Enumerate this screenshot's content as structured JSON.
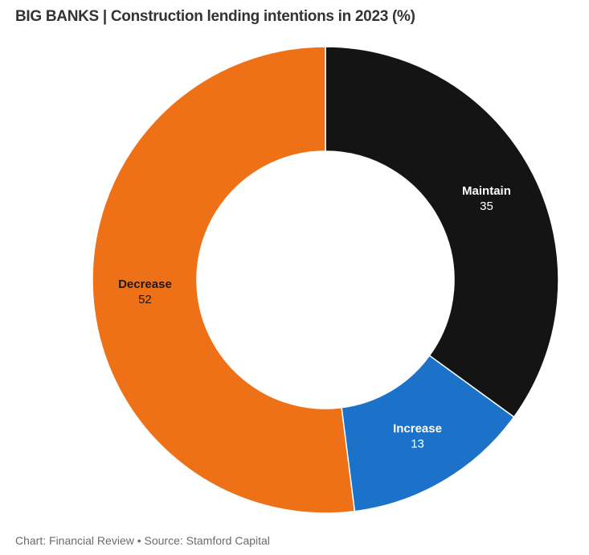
{
  "header": {
    "title": "BIG BANKS | Construction lending intentions in 2023 (%)"
  },
  "chart_data": {
    "type": "pie",
    "variant": "donut",
    "title": "BIG BANKS | Construction lending intentions in 2023 (%)",
    "unit": "%",
    "start_angle_deg": 0,
    "direction": "clockwise",
    "inner_radius_ratio": 0.55,
    "labels_position": "on-slice",
    "slices": [
      {
        "label": "Maintain",
        "value": 35,
        "color": "#141414",
        "label_color": "#ffffff"
      },
      {
        "label": "Increase",
        "value": 13,
        "color": "#1b72c8",
        "label_color": "#ffffff"
      },
      {
        "label": "Decrease",
        "value": 52,
        "color": "#ee7118",
        "label_color": "#1a1a1a"
      }
    ]
  },
  "footer": {
    "credit": "Chart: Financial Review • Source: Stamford Capital"
  }
}
